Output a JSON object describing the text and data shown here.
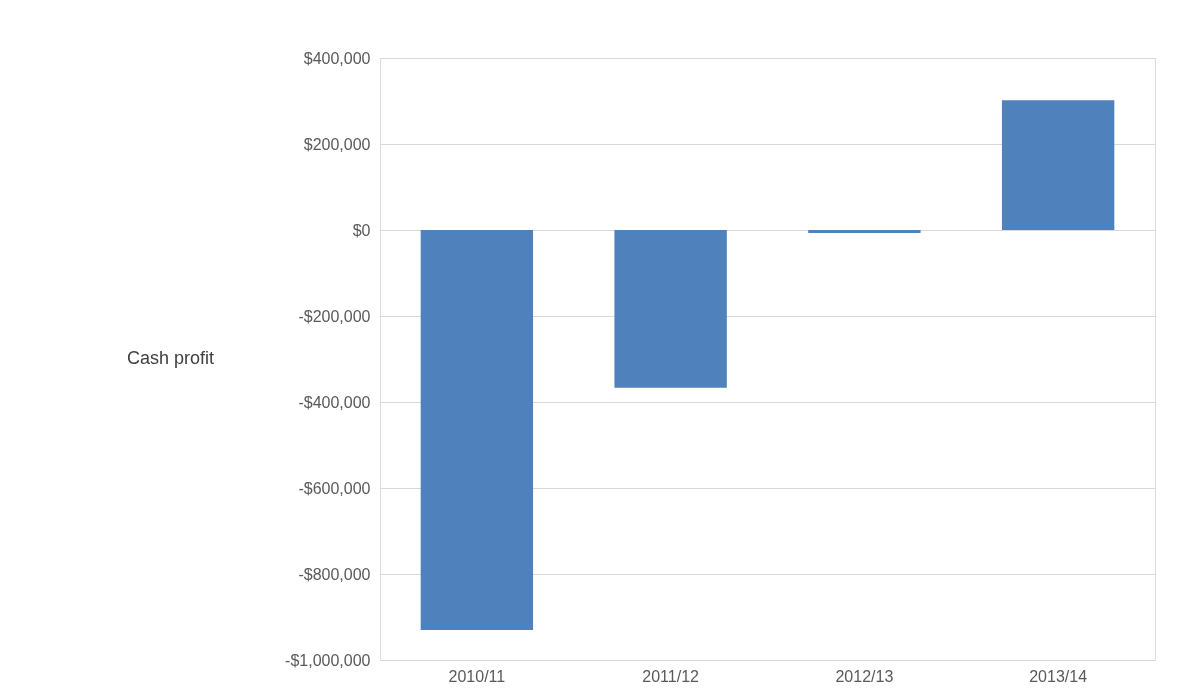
{
  "chart_data": {
    "type": "bar",
    "categories": [
      "2010/11",
      "2011/12",
      "2012/13",
      "2013/14"
    ],
    "values": [
      -930000,
      -367000,
      -7000,
      302000
    ],
    "color": "#4f81bd",
    "ylabel": "Cash profit",
    "ylim": [
      -1000000,
      400000
    ],
    "yticks": [
      {
        "value": -1000000,
        "label": "-$1,000,000"
      },
      {
        "value": -800000,
        "label": "-$800,000"
      },
      {
        "value": -600000,
        "label": "-$600,000"
      },
      {
        "value": -400000,
        "label": "-$400,000"
      },
      {
        "value": -200000,
        "label": "-$200,000"
      },
      {
        "value": 0,
        "label": "$0"
      },
      {
        "value": 200000,
        "label": "$200,000"
      },
      {
        "value": 400000,
        "label": "$400,000"
      }
    ],
    "grid": "y"
  }
}
